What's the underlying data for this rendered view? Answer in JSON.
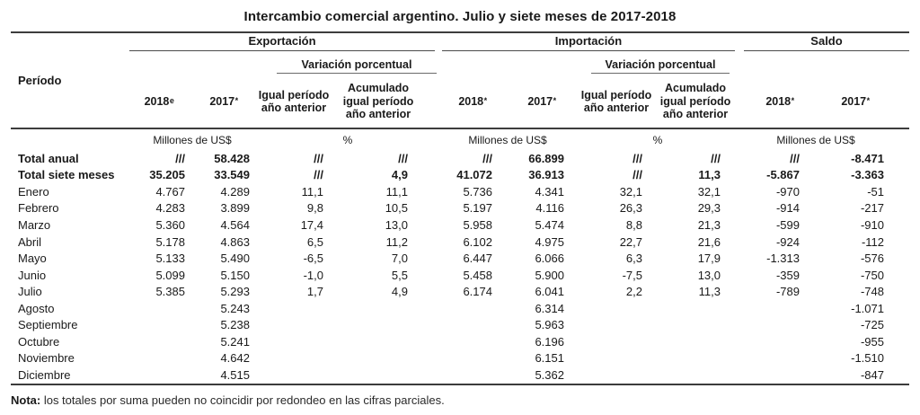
{
  "title": "Intercambio comercial argentino. Julio y siete meses de 2017-2018",
  "header": {
    "periodo": "Período",
    "exportacion": "Exportación",
    "importacion": "Importación",
    "saldo": "Saldo",
    "variacion_exp": "Variación porcentual",
    "variacion_imp": "Variación porcentual",
    "exp_2018": "2018",
    "exp_2018_sup": "e",
    "exp_2017": "2017",
    "exp_2017_sup": "*",
    "exp_igual": "Igual período año anterior",
    "exp_acum": "Acumulado igual período año anterior",
    "imp_2018": "2018",
    "imp_2018_sup": "*",
    "imp_2017": "2017",
    "imp_2017_sup": "*",
    "imp_igual": "Igual período año anterior",
    "imp_acum": "Acumulado igual período año anterior",
    "saldo_2018": "2018",
    "saldo_2018_sup": "*",
    "saldo_2017": "2017",
    "saldo_2017_sup": "*"
  },
  "units": {
    "millones_exp": "Millones de US$",
    "percent_exp": "%",
    "millones_imp": "Millones de US$",
    "percent_imp": "%",
    "millones_saldo": "Millones de US$"
  },
  "rows": [
    {
      "periodo": "Total anual",
      "bold": true,
      "cells": [
        "///",
        "58.428",
        "///",
        "///",
        "///",
        "66.899",
        "///",
        "///",
        "///",
        "-8.471"
      ]
    },
    {
      "periodo": "Total siete meses",
      "bold": true,
      "cells": [
        "35.205",
        "33.549",
        "///",
        "4,9",
        "41.072",
        "36.913",
        "///",
        "11,3",
        "-5.867",
        "-3.363"
      ]
    },
    {
      "periodo": "Enero",
      "bold": false,
      "cells": [
        "4.767",
        "4.289",
        "11,1",
        "11,1",
        "5.736",
        "4.341",
        "32,1",
        "32,1",
        "-970",
        "-51"
      ]
    },
    {
      "periodo": "Febrero",
      "bold": false,
      "cells": [
        "4.283",
        "3.899",
        "9,8",
        "10,5",
        "5.197",
        "4.116",
        "26,3",
        "29,3",
        "-914",
        "-217"
      ]
    },
    {
      "periodo": "Marzo",
      "bold": false,
      "cells": [
        "5.360",
        "4.564",
        "17,4",
        "13,0",
        "5.958",
        "5.474",
        "8,8",
        "21,3",
        "-599",
        "-910"
      ]
    },
    {
      "periodo": "Abril",
      "bold": false,
      "cells": [
        "5.178",
        "4.863",
        "6,5",
        "11,2",
        "6.102",
        "4.975",
        "22,7",
        "21,6",
        "-924",
        "-112"
      ]
    },
    {
      "periodo": "Mayo",
      "bold": false,
      "cells": [
        "5.133",
        "5.490",
        "-6,5",
        "7,0",
        "6.447",
        "6.066",
        "6,3",
        "17,9",
        "-1.313",
        "-576"
      ]
    },
    {
      "periodo": "Junio",
      "bold": false,
      "cells": [
        "5.099",
        "5.150",
        "-1,0",
        "5,5",
        "5.458",
        "5.900",
        "-7,5",
        "13,0",
        "-359",
        "-750"
      ]
    },
    {
      "periodo": "Julio",
      "bold": false,
      "cells": [
        "5.385",
        "5.293",
        "1,7",
        "4,9",
        "6.174",
        "6.041",
        "2,2",
        "11,3",
        "-789",
        "-748"
      ]
    },
    {
      "periodo": "Agosto",
      "bold": false,
      "cells": [
        "",
        "5.243",
        "",
        "",
        "",
        "6.314",
        "",
        "",
        "",
        "-1.071"
      ]
    },
    {
      "periodo": "Septiembre",
      "bold": false,
      "cells": [
        "",
        "5.238",
        "",
        "",
        "",
        "5.963",
        "",
        "",
        "",
        "-725"
      ]
    },
    {
      "periodo": "Octubre",
      "bold": false,
      "cells": [
        "",
        "5.241",
        "",
        "",
        "",
        "6.196",
        "",
        "",
        "",
        "-955"
      ]
    },
    {
      "periodo": "Noviembre",
      "bold": false,
      "cells": [
        "",
        "4.642",
        "",
        "",
        "",
        "6.151",
        "",
        "",
        "",
        "-1.510"
      ]
    },
    {
      "periodo": "Diciembre",
      "bold": false,
      "cells": [
        "",
        "4.515",
        "",
        "",
        "",
        "5.362",
        "",
        "",
        "",
        "-847"
      ]
    }
  ],
  "note_label": "Nota:",
  "note_text": " los totales por suma pueden no coincidir por redondeo en las cifras parciales."
}
